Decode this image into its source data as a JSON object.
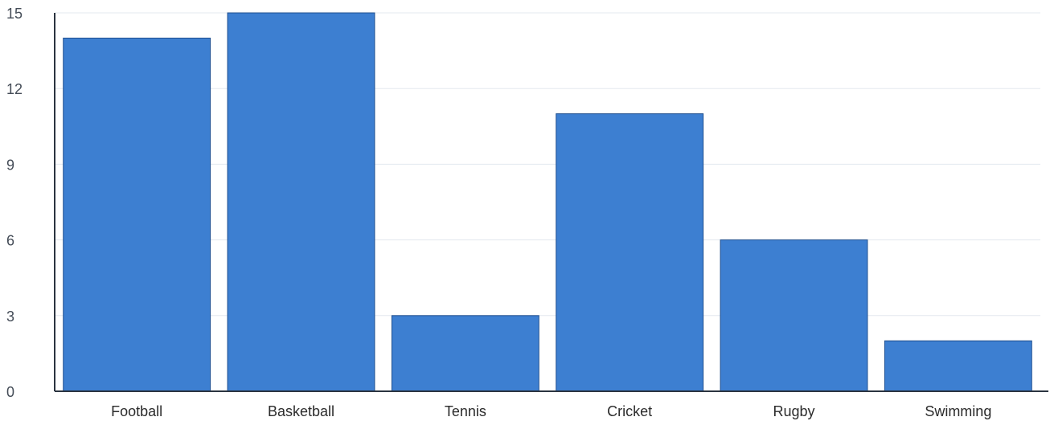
{
  "chart_data": {
    "type": "bar",
    "categories": [
      "Football",
      "Basketball",
      "Tennis",
      "Cricket",
      "Rugby",
      "Swimming"
    ],
    "values": [
      14,
      15,
      3,
      11,
      6,
      2
    ],
    "title": "",
    "xlabel": "",
    "ylabel": "",
    "ylim": [
      0,
      15
    ],
    "yticks": [
      "0",
      "3",
      "6",
      "9",
      "12",
      "15"
    ],
    "grid": true,
    "legend": "none",
    "colors": {
      "bar_fill": "#3d7fd1",
      "bar_stroke": "#1f4f8f",
      "grid": "#e3e8ef",
      "axis": "#2b3440"
    }
  }
}
